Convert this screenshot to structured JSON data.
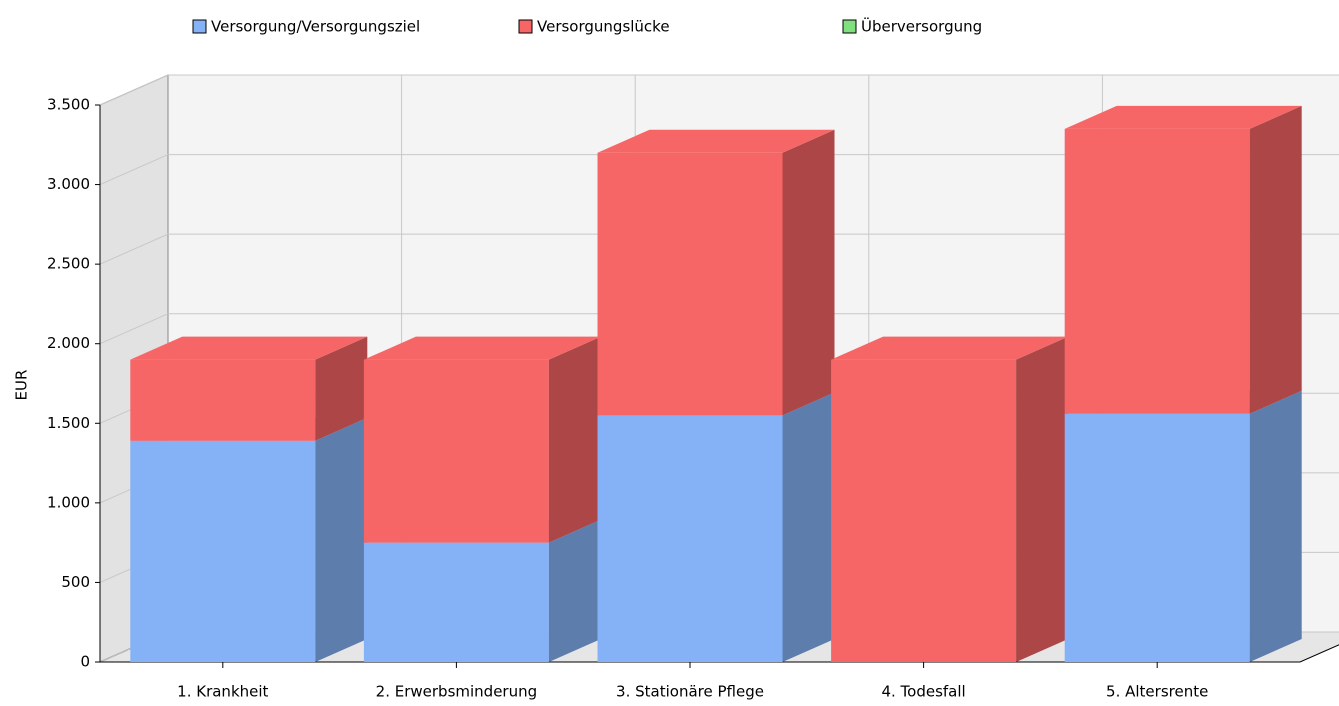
{
  "chart_data": {
    "type": "bar3d_stacked",
    "y_label": "EUR",
    "categories": [
      "1. Krankheit",
      "2. Erwerbsminderung",
      "3. Stationäre Pflege",
      "4. Todesfall",
      "5. Altersrente"
    ],
    "series": [
      {
        "name": "Versorgung/Versorgungsziel",
        "color": "#85b2f7",
        "values": [
          1390,
          750,
          1550,
          0,
          1560
        ]
      },
      {
        "name": "Versorgungslücke",
        "color": "#f76666",
        "values": [
          510,
          1150,
          1650,
          1900,
          1790
        ]
      },
      {
        "name": "Überversorgung",
        "color": "#80e080",
        "values": [
          0,
          0,
          0,
          0,
          0
        ]
      }
    ],
    "ylim": [
      0,
      3500
    ],
    "yticks": [
      0,
      500,
      {
        "value": 1000,
        "label": "1.000"
      },
      {
        "value": 1500,
        "label": "1.500"
      },
      {
        "value": 2000,
        "label": "2.000"
      },
      {
        "value": 2500,
        "label": "2.500"
      },
      {
        "value": 3000,
        "label": "3.000"
      },
      {
        "value": 3500,
        "label": "3.500"
      }
    ],
    "grid": true
  }
}
